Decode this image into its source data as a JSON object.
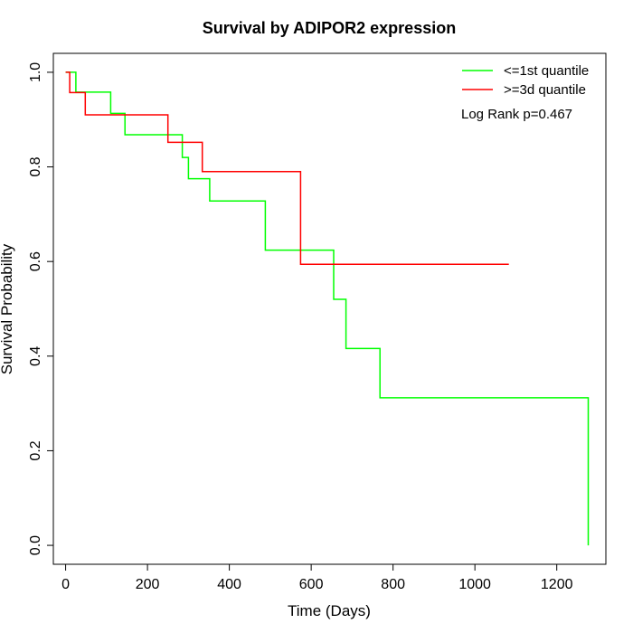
{
  "chart_data": {
    "type": "line",
    "title": "Survival by ADIPOR2 expression",
    "xlabel": "Time (Days)",
    "ylabel": "Survival Probability",
    "xlim": [
      -30,
      1320
    ],
    "ylim": [
      -0.04,
      1.04
    ],
    "x_ticks": [
      0,
      200,
      400,
      600,
      800,
      1000,
      1200
    ],
    "y_ticks": [
      0.0,
      0.2,
      0.4,
      0.6,
      0.8,
      1.0
    ],
    "x_tick_labels": [
      "0",
      "200",
      "400",
      "600",
      "800",
      "1000",
      "1200"
    ],
    "y_tick_labels": [
      "0.0",
      "0.2",
      "0.4",
      "0.6",
      "0.8",
      "1.0"
    ],
    "grid": false,
    "legend_position": "top-right",
    "series": [
      {
        "name": "<=1st quantile",
        "color": "#00ff00",
        "step_points": [
          [
            0,
            1.0
          ],
          [
            25,
            1.0
          ],
          [
            25,
            0.958
          ],
          [
            110,
            0.958
          ],
          [
            110,
            0.913
          ],
          [
            145,
            0.913
          ],
          [
            145,
            0.868
          ],
          [
            285,
            0.868
          ],
          [
            285,
            0.82
          ],
          [
            300,
            0.82
          ],
          [
            300,
            0.775
          ],
          [
            352,
            0.775
          ],
          [
            352,
            0.728
          ],
          [
            488,
            0.728
          ],
          [
            488,
            0.624
          ],
          [
            655,
            0.624
          ],
          [
            655,
            0.52
          ],
          [
            685,
            0.52
          ],
          [
            685,
            0.416
          ],
          [
            768,
            0.416
          ],
          [
            768,
            0.312
          ],
          [
            1277,
            0.312
          ],
          [
            1277,
            0.0
          ]
        ]
      },
      {
        "name": ">=3d quantile",
        "color": "#ff0000",
        "step_points": [
          [
            0,
            1.0
          ],
          [
            10,
            1.0
          ],
          [
            10,
            0.957
          ],
          [
            48,
            0.957
          ],
          [
            48,
            0.91
          ],
          [
            250,
            0.91
          ],
          [
            250,
            0.852
          ],
          [
            334,
            0.852
          ],
          [
            334,
            0.79
          ],
          [
            574,
            0.79
          ],
          [
            574,
            0.594
          ],
          [
            1083,
            0.594
          ]
        ]
      }
    ],
    "annotation": "Log Rank p=0.467"
  }
}
